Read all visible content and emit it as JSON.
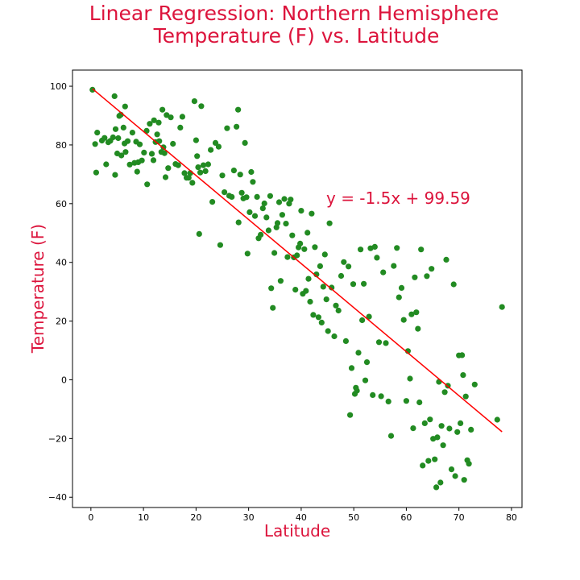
{
  "chart_data": {
    "type": "scatter",
    "title_lines": [
      "Linear Regression: Northern Hemisphere",
      "Temperature (F) vs. Latitude"
    ],
    "xlabel": "Latitude",
    "ylabel": "Temperature (F)",
    "xlim": [
      -3.5,
      82
    ],
    "ylim": [
      -43.5,
      105.5
    ],
    "xticks": [
      0,
      10,
      20,
      30,
      40,
      50,
      60,
      70,
      80
    ],
    "yticks": [
      -40,
      -20,
      0,
      20,
      40,
      60,
      80,
      100
    ],
    "grid": false,
    "point_color": "#228b22",
    "line_color": "#ff0000",
    "title_color": "#dc143c",
    "regression": {
      "slope": -1.5,
      "intercept": 99.59,
      "x_range": [
        0.3,
        78.2
      ],
      "equation": "y = -1.5x + 99.59"
    },
    "points": [
      [
        0.3,
        98.8
      ],
      [
        0.8,
        80.3
      ],
      [
        1.2,
        84.2
      ],
      [
        1.0,
        70.6
      ],
      [
        2.1,
        81.5
      ],
      [
        2.6,
        82.4
      ],
      [
        2.9,
        73.4
      ],
      [
        3.3,
        80.9
      ],
      [
        3.7,
        81.4
      ],
      [
        4.2,
        82.6
      ],
      [
        4.5,
        96.6
      ],
      [
        4.7,
        85.4
      ],
      [
        4.6,
        69.8
      ],
      [
        5.0,
        77.1
      ],
      [
        5.2,
        82.3
      ],
      [
        5.4,
        89.9
      ],
      [
        5.7,
        90.3
      ],
      [
        5.8,
        76.4
      ],
      [
        6.2,
        85.9
      ],
      [
        6.4,
        80.5
      ],
      [
        6.5,
        93.1
      ],
      [
        6.6,
        77.6
      ],
      [
        7.0,
        81.3
      ],
      [
        7.4,
        73.3
      ],
      [
        7.9,
        84.2
      ],
      [
        8.3,
        73.9
      ],
      [
        8.6,
        81.1
      ],
      [
        8.8,
        70.9
      ],
      [
        9.0,
        74.1
      ],
      [
        9.3,
        80.2
      ],
      [
        9.7,
        74.7
      ],
      [
        10.1,
        77.4
      ],
      [
        10.6,
        84.8
      ],
      [
        10.7,
        66.6
      ],
      [
        11.2,
        87.2
      ],
      [
        11.6,
        77.0
      ],
      [
        11.9,
        74.8
      ],
      [
        12.0,
        88.4
      ],
      [
        12.3,
        81.0
      ],
      [
        12.6,
        83.6
      ],
      [
        12.9,
        87.6
      ],
      [
        13.0,
        81.3
      ],
      [
        13.4,
        77.6
      ],
      [
        13.6,
        92.0
      ],
      [
        13.8,
        79.2
      ],
      [
        14.0,
        77.2
      ],
      [
        14.2,
        69.0
      ],
      [
        14.4,
        90.2
      ],
      [
        14.7,
        72.1
      ],
      [
        15.2,
        89.4
      ],
      [
        15.6,
        80.4
      ],
      [
        16.1,
        73.5
      ],
      [
        16.6,
        73.1
      ],
      [
        17.0,
        85.9
      ],
      [
        17.4,
        89.6
      ],
      [
        17.8,
        70.4
      ],
      [
        18.2,
        68.8
      ],
      [
        18.6,
        68.8
      ],
      [
        18.9,
        70.4
      ],
      [
        19.3,
        67.1
      ],
      [
        19.7,
        94.9
      ],
      [
        20.0,
        81.6
      ],
      [
        20.2,
        76.2
      ],
      [
        20.4,
        72.4
      ],
      [
        20.6,
        49.7
      ],
      [
        20.8,
        70.6
      ],
      [
        21.0,
        93.2
      ],
      [
        21.4,
        73.1
      ],
      [
        21.8,
        71.1
      ],
      [
        22.3,
        73.4
      ],
      [
        22.8,
        78.3
      ],
      [
        23.1,
        60.6
      ],
      [
        23.7,
        80.7
      ],
      [
        24.3,
        79.4
      ],
      [
        24.6,
        45.9
      ],
      [
        25.0,
        69.6
      ],
      [
        25.4,
        63.9
      ],
      [
        25.9,
        85.7
      ],
      [
        26.3,
        62.7
      ],
      [
        26.8,
        62.3
      ],
      [
        27.2,
        71.3
      ],
      [
        27.7,
        86.2
      ],
      [
        28.0,
        92.0
      ],
      [
        28.1,
        53.6
      ],
      [
        28.4,
        69.9
      ],
      [
        28.7,
        63.7
      ],
      [
        29.0,
        61.8
      ],
      [
        29.3,
        80.7
      ],
      [
        29.6,
        62.2
      ],
      [
        29.8,
        43.0
      ],
      [
        30.2,
        57.1
      ],
      [
        30.5,
        70.8
      ],
      [
        30.8,
        67.4
      ],
      [
        31.2,
        55.8
      ],
      [
        31.6,
        62.3
      ],
      [
        31.9,
        48.2
      ],
      [
        32.3,
        49.4
      ],
      [
        32.7,
        58.4
      ],
      [
        33.0,
        60.1
      ],
      [
        33.4,
        55.3
      ],
      [
        33.8,
        50.9
      ],
      [
        34.1,
        62.6
      ],
      [
        34.3,
        31.2
      ],
      [
        34.6,
        24.5
      ],
      [
        34.9,
        43.2
      ],
      [
        35.3,
        51.9
      ],
      [
        35.5,
        53.4
      ],
      [
        35.8,
        60.5
      ],
      [
        36.1,
        33.7
      ],
      [
        36.4,
        56.2
      ],
      [
        36.8,
        61.6
      ],
      [
        37.1,
        53.2
      ],
      [
        37.4,
        41.8
      ],
      [
        37.7,
        60.0
      ],
      [
        38.0,
        61.4
      ],
      [
        38.3,
        49.2
      ],
      [
        38.6,
        41.7
      ],
      [
        38.9,
        30.7
      ],
      [
        39.2,
        42.4
      ],
      [
        39.5,
        45.1
      ],
      [
        39.8,
        46.4
      ],
      [
        40.0,
        57.6
      ],
      [
        40.3,
        29.3
      ],
      [
        40.6,
        44.5
      ],
      [
        40.9,
        30.3
      ],
      [
        41.2,
        50.1
      ],
      [
        41.4,
        34.4
      ],
      [
        41.7,
        26.6
      ],
      [
        42.0,
        56.6
      ],
      [
        42.3,
        22.1
      ],
      [
        42.6,
        45.2
      ],
      [
        42.9,
        35.9
      ],
      [
        43.3,
        21.3
      ],
      [
        43.6,
        38.7
      ],
      [
        43.9,
        19.5
      ],
      [
        44.2,
        31.7
      ],
      [
        44.5,
        42.7
      ],
      [
        44.8,
        27.4
      ],
      [
        45.1,
        16.6
      ],
      [
        45.4,
        53.3
      ],
      [
        45.8,
        31.4
      ],
      [
        46.3,
        14.8
      ],
      [
        46.6,
        25.3
      ],
      [
        47.1,
        23.6
      ],
      [
        47.6,
        35.4
      ],
      [
        48.1,
        40.1
      ],
      [
        48.5,
        13.2
      ],
      [
        49.0,
        38.6
      ],
      [
        49.3,
        -12.0
      ],
      [
        49.6,
        4.0
      ],
      [
        49.9,
        32.6
      ],
      [
        50.2,
        -4.8
      ],
      [
        50.4,
        -2.7
      ],
      [
        50.6,
        -3.7
      ],
      [
        50.9,
        9.2
      ],
      [
        51.3,
        44.4
      ],
      [
        51.6,
        20.3
      ],
      [
        51.9,
        32.7
      ],
      [
        52.2,
        -0.2
      ],
      [
        52.5,
        6.0
      ],
      [
        52.9,
        21.5
      ],
      [
        53.2,
        44.8
      ],
      [
        53.6,
        -5.2
      ],
      [
        54.0,
        45.3
      ],
      [
        54.4,
        41.6
      ],
      [
        54.8,
        12.8
      ],
      [
        55.2,
        -5.6
      ],
      [
        55.6,
        36.6
      ],
      [
        56.1,
        12.5
      ],
      [
        56.6,
        -7.4
      ],
      [
        57.1,
        -19.1
      ],
      [
        57.6,
        38.8
      ],
      [
        58.2,
        44.9
      ],
      [
        58.6,
        28.1
      ],
      [
        59.1,
        31.3
      ],
      [
        59.5,
        20.4
      ],
      [
        60.0,
        -7.2
      ],
      [
        60.3,
        9.8
      ],
      [
        60.7,
        0.4
      ],
      [
        61.0,
        22.3
      ],
      [
        61.3,
        -16.5
      ],
      [
        61.6,
        34.9
      ],
      [
        61.9,
        23.0
      ],
      [
        62.2,
        17.4
      ],
      [
        62.5,
        -7.7
      ],
      [
        62.8,
        44.4
      ],
      [
        63.1,
        -29.2
      ],
      [
        63.5,
        -14.8
      ],
      [
        63.9,
        35.3
      ],
      [
        64.2,
        -27.6
      ],
      [
        64.5,
        -13.5
      ],
      [
        64.8,
        37.8
      ],
      [
        65.1,
        -20.1
      ],
      [
        65.4,
        -27.1
      ],
      [
        65.7,
        -36.6
      ],
      [
        65.9,
        -19.6
      ],
      [
        66.2,
        -0.7
      ],
      [
        66.5,
        -35.0
      ],
      [
        66.7,
        -15.7
      ],
      [
        67.0,
        -22.3
      ],
      [
        67.3,
        -4.2
      ],
      [
        67.6,
        40.9
      ],
      [
        67.9,
        -2.0
      ],
      [
        68.2,
        -16.6
      ],
      [
        68.6,
        -30.5
      ],
      [
        69.0,
        32.5
      ],
      [
        69.3,
        -32.8
      ],
      [
        69.7,
        -17.8
      ],
      [
        70.0,
        8.3
      ],
      [
        70.3,
        -14.8
      ],
      [
        70.6,
        8.4
      ],
      [
        70.8,
        1.6
      ],
      [
        71.0,
        -34.1
      ],
      [
        71.3,
        -5.7
      ],
      [
        71.6,
        -27.4
      ],
      [
        71.9,
        -28.6
      ],
      [
        72.3,
        -17.0
      ],
      [
        73.0,
        -1.6
      ],
      [
        77.3,
        -13.6
      ],
      [
        78.2,
        24.8
      ]
    ]
  }
}
